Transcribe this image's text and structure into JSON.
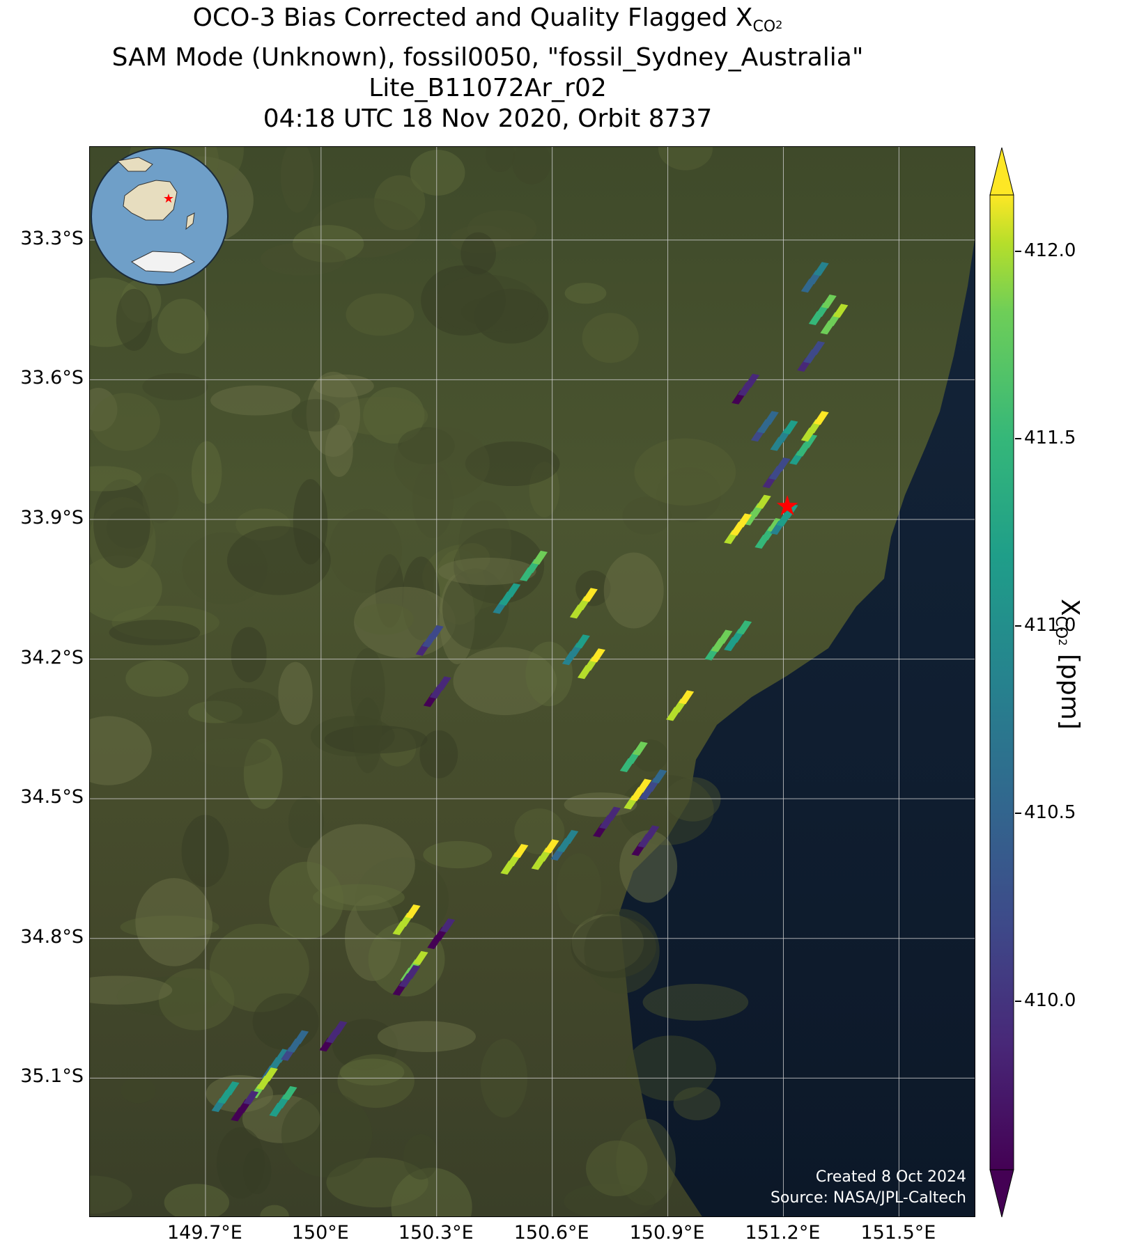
{
  "title": {
    "line1_prefix": "OCO-3 Bias Corrected and Quality Flagged X",
    "line1_sub": "CO",
    "line1_sub2": "2",
    "line2": "SAM Mode (Unknown), fossil0050, \"fossil_Sydney_Australia\"",
    "line3": "Lite_B11072Ar_r02",
    "line4": "04:18 UTC 18 Nov 2020, Orbit 8737"
  },
  "map": {
    "lat_ticks": [
      "33.3°S",
      "33.6°S",
      "33.9°S",
      "34.2°S",
      "34.5°S",
      "34.8°S",
      "35.1°S"
    ],
    "lon_ticks": [
      "149.7°E",
      "150°E",
      "150.3°E",
      "150.6°E",
      "150.9°E",
      "151.2°E",
      "151.5°E"
    ],
    "lat_values": [
      -33.3,
      -33.6,
      -33.9,
      -34.2,
      -34.5,
      -34.8,
      -35.1
    ],
    "lon_values": [
      149.7,
      150.0,
      150.3,
      150.6,
      150.9,
      151.2,
      151.5
    ],
    "extent": {
      "lon_min": 149.4,
      "lon_max": 151.7,
      "lat_min": -35.4,
      "lat_max": -33.1
    },
    "target": {
      "name": "fossil_Sydney_Australia",
      "lon": 151.21,
      "lat": -33.87,
      "marker": "red-star"
    },
    "ocean_color": "#0e1a2b",
    "land_color": "#4a5230",
    "credit_line1": "Created 8 Oct 2024",
    "credit_line2": "Source: NASA/JPL-Caltech"
  },
  "colorbar": {
    "label_prefix": "X",
    "label_sub": "CO",
    "label_sub2": "2",
    "label_suffix": " [ppm]",
    "ticks": [
      "412.0",
      "411.5",
      "411.0",
      "410.5",
      "410.0"
    ],
    "tick_values": [
      412.0,
      411.5,
      411.0,
      410.5,
      410.0
    ],
    "range": [
      409.55,
      412.15
    ],
    "colormap": "viridis",
    "extend": "both"
  },
  "chart_data": {
    "type": "map",
    "variable": "XCO2",
    "units": "ppm",
    "soundings": [
      {
        "lon": 151.28,
        "lat": -33.38,
        "xco2": 410.5
      },
      {
        "lon": 151.3,
        "lat": -33.45,
        "xco2": 411.3
      },
      {
        "lon": 151.27,
        "lat": -33.55,
        "xco2": 410.0
      },
      {
        "lon": 151.33,
        "lat": -33.47,
        "xco2": 411.7
      },
      {
        "lon": 151.1,
        "lat": -33.62,
        "xco2": 409.8
      },
      {
        "lon": 151.15,
        "lat": -33.7,
        "xco2": 410.3
      },
      {
        "lon": 151.2,
        "lat": -33.72,
        "xco2": 410.8
      },
      {
        "lon": 151.25,
        "lat": -33.75,
        "xco2": 411.2
      },
      {
        "lon": 151.18,
        "lat": -33.8,
        "xco2": 410.1
      },
      {
        "lon": 151.28,
        "lat": -33.7,
        "xco2": 412.0
      },
      {
        "lon": 151.13,
        "lat": -33.88,
        "xco2": 411.6
      },
      {
        "lon": 151.08,
        "lat": -33.92,
        "xco2": 412.1
      },
      {
        "lon": 151.16,
        "lat": -33.93,
        "xco2": 411.4
      },
      {
        "lon": 151.2,
        "lat": -33.9,
        "xco2": 410.9
      },
      {
        "lon": 151.03,
        "lat": -34.17,
        "xco2": 411.5
      },
      {
        "lon": 151.08,
        "lat": -34.15,
        "xco2": 411.0
      },
      {
        "lon": 150.93,
        "lat": -34.3,
        "xco2": 411.9
      },
      {
        "lon": 150.81,
        "lat": -34.41,
        "xco2": 411.4
      },
      {
        "lon": 150.82,
        "lat": -34.49,
        "xco2": 412.1
      },
      {
        "lon": 150.86,
        "lat": -34.47,
        "xco2": 410.2
      },
      {
        "lon": 150.84,
        "lat": -34.59,
        "xco2": 409.8
      },
      {
        "lon": 150.58,
        "lat": -34.62,
        "xco2": 411.9
      },
      {
        "lon": 150.63,
        "lat": -34.6,
        "xco2": 410.7
      },
      {
        "lon": 150.5,
        "lat": -34.63,
        "xco2": 412.0
      },
      {
        "lon": 150.22,
        "lat": -34.76,
        "xco2": 412.0
      },
      {
        "lon": 150.31,
        "lat": -34.79,
        "xco2": 409.6
      },
      {
        "lon": 150.24,
        "lat": -34.86,
        "xco2": 411.6
      },
      {
        "lon": 150.22,
        "lat": -34.89,
        "xco2": 409.7
      },
      {
        "lon": 149.88,
        "lat": -35.07,
        "xco2": 410.6
      },
      {
        "lon": 149.85,
        "lat": -35.11,
        "xco2": 411.8
      },
      {
        "lon": 149.8,
        "lat": -35.16,
        "xco2": 409.6
      },
      {
        "lon": 149.9,
        "lat": -35.15,
        "xco2": 411.0
      },
      {
        "lon": 149.93,
        "lat": -35.03,
        "xco2": 410.3
      },
      {
        "lon": 149.75,
        "lat": -35.14,
        "xco2": 410.9
      },
      {
        "lon": 150.03,
        "lat": -35.01,
        "xco2": 409.7
      },
      {
        "lon": 150.28,
        "lat": -34.16,
        "xco2": 410.1
      },
      {
        "lon": 150.3,
        "lat": -34.27,
        "xco2": 409.8
      },
      {
        "lon": 150.55,
        "lat": -34.0,
        "xco2": 411.4
      },
      {
        "lon": 150.48,
        "lat": -34.07,
        "xco2": 410.9
      },
      {
        "lon": 150.68,
        "lat": -34.08,
        "xco2": 412.0
      },
      {
        "lon": 150.66,
        "lat": -34.18,
        "xco2": 410.8
      },
      {
        "lon": 150.7,
        "lat": -34.21,
        "xco2": 411.9
      },
      {
        "lon": 150.74,
        "lat": -34.55,
        "xco2": 409.7
      }
    ]
  }
}
